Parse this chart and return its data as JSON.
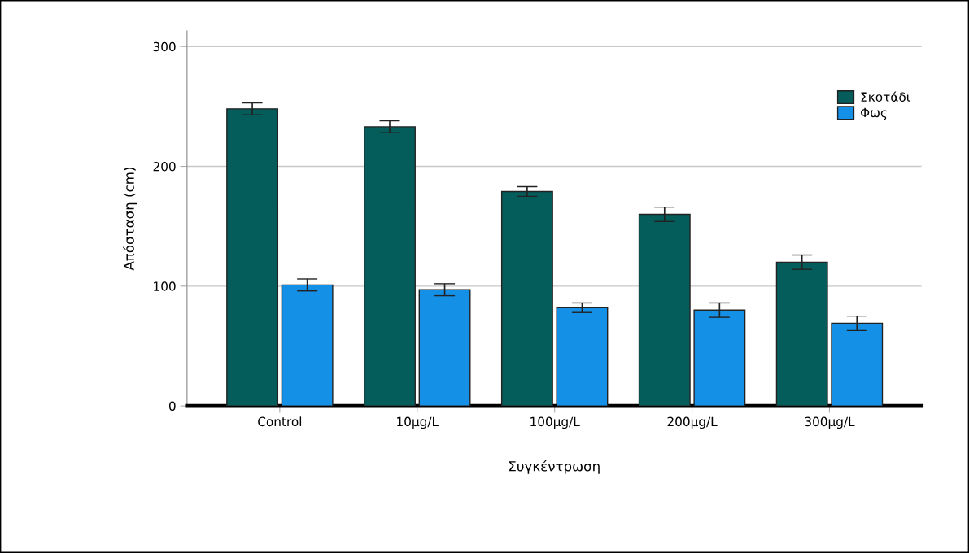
{
  "chart_data": {
    "type": "bar",
    "xlabel": "Συγκέντρωση",
    "ylabel": "Απόσταση (cm)",
    "categories": [
      "Control",
      "10µg/L",
      "100µg/L",
      "200µg/L",
      "300µg/L"
    ],
    "series": [
      {
        "name": "Σκοτάδι",
        "color": "#045d5b",
        "values": [
          248,
          233,
          179,
          160,
          120
        ],
        "errors": [
          5,
          5,
          4,
          6,
          6
        ]
      },
      {
        "name": "Φως",
        "color": "#1490e6",
        "values": [
          101,
          97,
          82,
          80,
          69
        ],
        "errors": [
          5,
          5,
          4,
          6,
          6
        ]
      }
    ],
    "ylim": [
      0,
      313
    ],
    "yticks": [
      0,
      100,
      200,
      300
    ],
    "grid": "y",
    "legend": "top right"
  }
}
